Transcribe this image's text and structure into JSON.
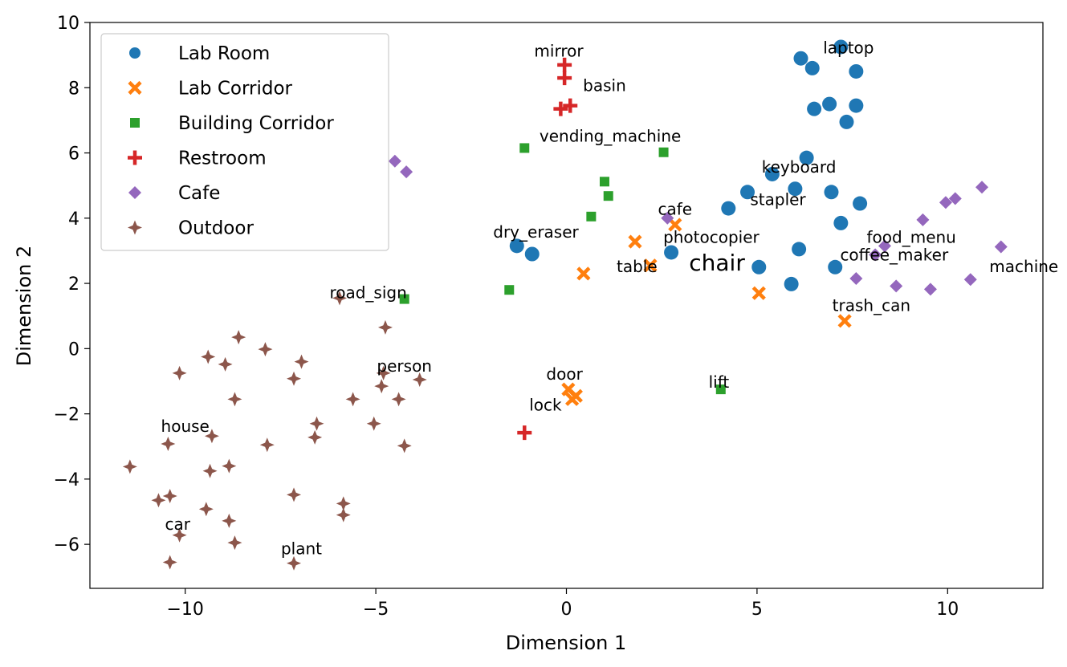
{
  "chart_data": {
    "type": "scatter",
    "title": "",
    "xlabel": "Dimension 1",
    "ylabel": "Dimension 2",
    "xlim": [
      -12.5,
      12.5
    ],
    "ylim": [
      -7.35,
      10.0
    ],
    "xticks": [
      -10,
      -5,
      0,
      5,
      10
    ],
    "xtick_labels": [
      "−10",
      "−5",
      "0",
      "5",
      "10"
    ],
    "yticks": [
      -6,
      -4,
      -2,
      0,
      2,
      4,
      6,
      8,
      10
    ],
    "ytick_labels": [
      "−6",
      "−4",
      "−2",
      "0",
      "2",
      "4",
      "6",
      "8",
      "10"
    ],
    "grid": false,
    "legend_position": "upper-left",
    "series": [
      {
        "name": "Lab Room",
        "color": "#1f77b4",
        "marker": "circle",
        "points": [
          [
            7.2,
            9.25
          ],
          [
            6.15,
            8.9
          ],
          [
            6.45,
            8.6
          ],
          [
            7.6,
            8.5
          ],
          [
            6.9,
            7.5
          ],
          [
            7.6,
            7.45
          ],
          [
            6.5,
            7.35
          ],
          [
            7.35,
            6.95
          ],
          [
            6.3,
            5.85
          ],
          [
            5.4,
            5.35
          ],
          [
            6.0,
            4.9
          ],
          [
            6.95,
            4.8
          ],
          [
            4.75,
            4.8
          ],
          [
            7.7,
            4.45
          ],
          [
            4.25,
            4.3
          ],
          [
            7.2,
            3.85
          ],
          [
            -1.3,
            3.15
          ],
          [
            6.1,
            3.05
          ],
          [
            -0.9,
            2.9
          ],
          [
            2.75,
            2.95
          ],
          [
            5.05,
            2.5
          ],
          [
            7.05,
            2.5
          ],
          [
            5.9,
            1.98
          ]
        ]
      },
      {
        "name": "Lab Corridor",
        "color": "#ff7f0e",
        "marker": "x",
        "points": [
          [
            2.85,
            3.8
          ],
          [
            1.8,
            3.28
          ],
          [
            2.2,
            2.55
          ],
          [
            0.45,
            2.3
          ],
          [
            5.05,
            1.7
          ],
          [
            7.3,
            0.85
          ],
          [
            0.05,
            -1.25
          ],
          [
            0.25,
            -1.45
          ],
          [
            0.15,
            -1.55
          ]
        ]
      },
      {
        "name": "Building Corridor",
        "color": "#2ca02c",
        "marker": "square",
        "points": [
          [
            -1.1,
            6.15
          ],
          [
            2.55,
            6.02
          ],
          [
            1.0,
            5.12
          ],
          [
            1.1,
            4.68
          ],
          [
            0.65,
            4.05
          ],
          [
            -1.5,
            1.8
          ],
          [
            -4.25,
            1.52
          ],
          [
            4.05,
            -1.25
          ]
        ]
      },
      {
        "name": "Restroom",
        "color": "#d62728",
        "marker": "plus",
        "points": [
          [
            -0.05,
            8.7
          ],
          [
            -0.05,
            8.3
          ],
          [
            0.1,
            7.45
          ],
          [
            -0.15,
            7.35
          ],
          [
            -1.1,
            -2.58
          ]
        ]
      },
      {
        "name": "Cafe",
        "color": "#9467bd",
        "marker": "diamond",
        "points": [
          [
            -4.5,
            5.75
          ],
          [
            -4.2,
            5.42
          ],
          [
            10.9,
            4.95
          ],
          [
            10.2,
            4.6
          ],
          [
            9.95,
            4.48
          ],
          [
            2.65,
            4.0
          ],
          [
            9.35,
            3.95
          ],
          [
            8.35,
            3.15
          ],
          [
            11.4,
            3.12
          ],
          [
            8.1,
            2.88
          ],
          [
            7.6,
            2.15
          ],
          [
            10.6,
            2.12
          ],
          [
            8.65,
            1.92
          ],
          [
            9.55,
            1.82
          ]
        ]
      },
      {
        "name": "Outdoor",
        "color": "#8c564b",
        "marker": "star4",
        "points": [
          [
            -5.95,
            1.55
          ],
          [
            -4.75,
            0.65
          ],
          [
            -8.6,
            0.35
          ],
          [
            -7.9,
            -0.02
          ],
          [
            -9.4,
            -0.25
          ],
          [
            -6.95,
            -0.4
          ],
          [
            -8.95,
            -0.48
          ],
          [
            -10.15,
            -0.75
          ],
          [
            -4.8,
            -0.75
          ],
          [
            -7.15,
            -0.92
          ],
          [
            -3.85,
            -0.95
          ],
          [
            -4.85,
            -1.15
          ],
          [
            -8.7,
            -1.55
          ],
          [
            -5.6,
            -1.55
          ],
          [
            -4.4,
            -1.55
          ],
          [
            -5.05,
            -2.3
          ],
          [
            -6.55,
            -2.3
          ],
          [
            -9.3,
            -2.68
          ],
          [
            -6.6,
            -2.72
          ],
          [
            -10.45,
            -2.92
          ],
          [
            -7.85,
            -2.95
          ],
          [
            -4.25,
            -2.98
          ],
          [
            -11.45,
            -3.62
          ],
          [
            -8.85,
            -3.6
          ],
          [
            -9.35,
            -3.75
          ],
          [
            -7.15,
            -4.48
          ],
          [
            -10.4,
            -4.52
          ],
          [
            -10.7,
            -4.65
          ],
          [
            -5.85,
            -4.75
          ],
          [
            -9.45,
            -4.92
          ],
          [
            -5.85,
            -5.1
          ],
          [
            -8.85,
            -5.28
          ],
          [
            -10.15,
            -5.72
          ],
          [
            -8.7,
            -5.95
          ],
          [
            -10.4,
            -6.55
          ],
          [
            -7.15,
            -6.58
          ]
        ]
      }
    ],
    "annotations": [
      {
        "text": "laptop",
        "x": 7.4,
        "y": 9.05,
        "size": 20
      },
      {
        "text": "mirror",
        "x": -0.2,
        "y": 8.95,
        "size": 20
      },
      {
        "text": "basin",
        "x": 1.0,
        "y": 7.9,
        "size": 20
      },
      {
        "text": "vending_machine",
        "x": 1.15,
        "y": 6.35,
        "size": 20
      },
      {
        "text": "keyboard",
        "x": 6.1,
        "y": 5.4,
        "size": 20
      },
      {
        "text": "stapler",
        "x": 5.55,
        "y": 4.4,
        "size": 20
      },
      {
        "text": "cafe",
        "x": 2.85,
        "y": 4.1,
        "size": 20
      },
      {
        "text": "dry_eraser",
        "x": -0.8,
        "y": 3.4,
        "size": 20
      },
      {
        "text": "photocopier",
        "x": 3.8,
        "y": 3.25,
        "size": 20
      },
      {
        "text": "food_menu",
        "x": 9.05,
        "y": 3.25,
        "size": 20
      },
      {
        "text": "coffee_maker",
        "x": 8.6,
        "y": 2.7,
        "size": 20
      },
      {
        "text": "chair",
        "x": 3.95,
        "y": 2.4,
        "size": 28
      },
      {
        "text": "table",
        "x": 1.85,
        "y": 2.35,
        "size": 20
      },
      {
        "text": "machine",
        "x": 12.0,
        "y": 2.35,
        "size": 20
      },
      {
        "text": "road_sign",
        "x": -5.2,
        "y": 1.55,
        "size": 20
      },
      {
        "text": "trash_can",
        "x": 8.0,
        "y": 1.15,
        "size": 20
      },
      {
        "text": "person",
        "x": -4.25,
        "y": -0.7,
        "size": 20
      },
      {
        "text": "door",
        "x": -0.05,
        "y": -0.95,
        "size": 20
      },
      {
        "text": "lift",
        "x": 4.0,
        "y": -1.2,
        "size": 20
      },
      {
        "text": "lock",
        "x": -0.55,
        "y": -1.9,
        "size": 20
      },
      {
        "text": "house",
        "x": -10.0,
        "y": -2.55,
        "size": 20
      },
      {
        "text": "car",
        "x": -10.2,
        "y": -5.55,
        "size": 20
      },
      {
        "text": "plant",
        "x": -6.95,
        "y": -6.3,
        "size": 20
      }
    ]
  }
}
